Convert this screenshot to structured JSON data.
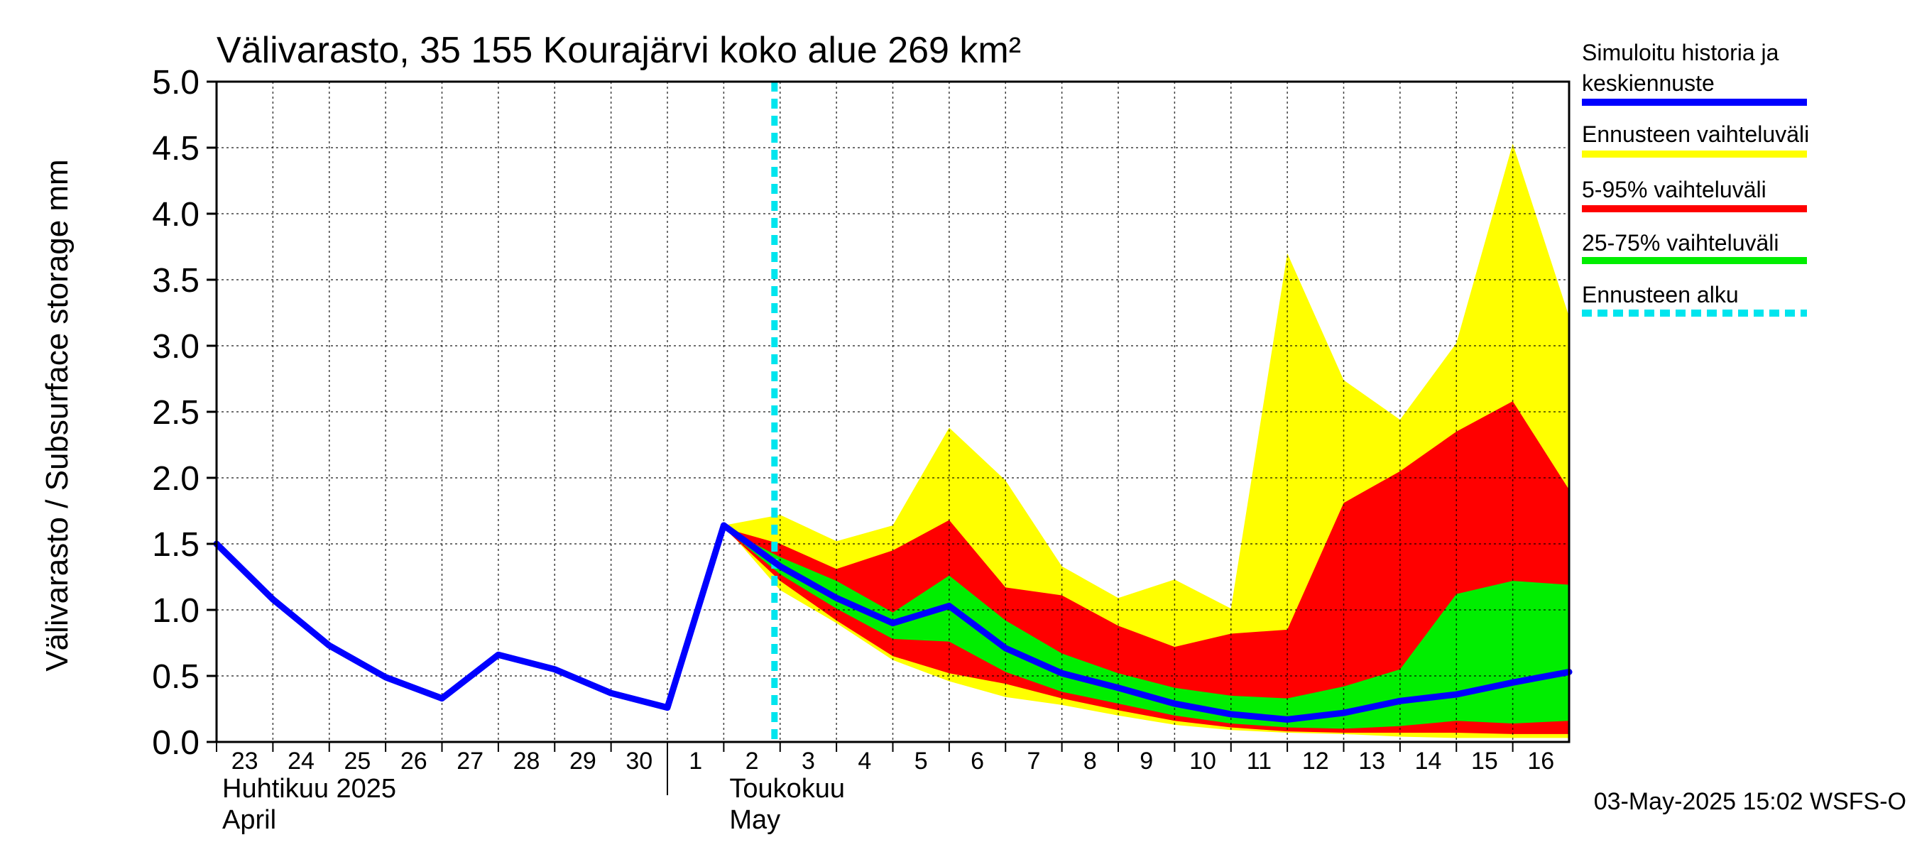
{
  "chart_data": {
    "type": "area",
    "title": "Välivarasto, 35 155 Kourajärvi koko alue 269 km²",
    "ylabel": "Välivarasto / Subsurface storage  mm",
    "ylim": [
      0,
      5.0
    ],
    "yticks": [
      "0.0",
      "0.5",
      "1.0",
      "1.5",
      "2.0",
      "2.5",
      "3.0",
      "3.5",
      "4.0",
      "4.5",
      "5.0"
    ],
    "x_days": [
      "23",
      "24",
      "25",
      "26",
      "27",
      "28",
      "29",
      "30",
      "1",
      "2",
      "3",
      "4",
      "5",
      "6",
      "7",
      "8",
      "9",
      "10",
      "11",
      "12",
      "13",
      "14",
      "15",
      "16"
    ],
    "month_labels": [
      {
        "fi": "Huhtikuu  2025",
        "en": "April"
      },
      {
        "fi": "Toukokuu",
        "en": "May"
      }
    ],
    "forecast_start_index": 9.9,
    "history": {
      "name": "Simuloitu historia ja keskiennuste",
      "color": "#0000ff",
      "x": [
        0,
        1,
        2,
        3,
        4,
        5,
        6,
        7,
        8,
        9,
        10,
        11,
        12,
        13,
        14,
        15,
        16,
        17,
        18,
        19,
        20,
        21,
        22,
        23,
        24
      ],
      "values": [
        1.5,
        1.08,
        0.73,
        0.49,
        0.33,
        0.66,
        0.55,
        0.37,
        0.26,
        1.64,
        1.33,
        1.09,
        0.9,
        1.03,
        0.71,
        0.52,
        0.41,
        0.29,
        0.21,
        0.17,
        0.22,
        0.31,
        0.36,
        0.45,
        0.53
      ]
    },
    "bands": [
      {
        "name": "Ennusteen vaihteluväli",
        "color": "#ffff00",
        "x": [
          9,
          10,
          11,
          12,
          13,
          14,
          15,
          16,
          17,
          18,
          19,
          20,
          21,
          22,
          23,
          24
        ],
        "upper": [
          1.64,
          1.72,
          1.52,
          1.64,
          2.38,
          1.98,
          1.33,
          1.09,
          1.23,
          1.01,
          3.7,
          2.74,
          2.44,
          3.02,
          4.53,
          3.22
        ],
        "lower": [
          1.64,
          1.15,
          0.9,
          0.62,
          0.46,
          0.34,
          0.28,
          0.2,
          0.13,
          0.09,
          0.07,
          0.06,
          0.04,
          0.03,
          0.03,
          0.03
        ]
      },
      {
        "name": "5-95% vaihteluväli",
        "color": "#ff0000",
        "x": [
          9,
          10,
          11,
          12,
          13,
          14,
          15,
          16,
          17,
          18,
          19,
          20,
          21,
          22,
          23,
          24
        ],
        "upper": [
          1.62,
          1.5,
          1.31,
          1.45,
          1.68,
          1.17,
          1.11,
          0.88,
          0.72,
          0.82,
          0.85,
          1.81,
          2.05,
          2.35,
          2.58,
          1.91
        ],
        "lower": [
          1.62,
          1.22,
          0.92,
          0.65,
          0.52,
          0.44,
          0.33,
          0.24,
          0.16,
          0.11,
          0.08,
          0.07,
          0.07,
          0.07,
          0.06,
          0.06
        ]
      },
      {
        "name": "25-75% vaihteluväli",
        "color": "#00ee00",
        "x": [
          9,
          10,
          11,
          12,
          13,
          14,
          15,
          16,
          17,
          18,
          19,
          20,
          21,
          22,
          23,
          24
        ],
        "upper": [
          1.62,
          1.4,
          1.22,
          0.98,
          1.26,
          0.92,
          0.67,
          0.52,
          0.41,
          0.35,
          0.33,
          0.42,
          0.55,
          1.12,
          1.22,
          1.19
        ],
        "lower": [
          1.62,
          1.27,
          1.01,
          0.78,
          0.76,
          0.53,
          0.38,
          0.29,
          0.2,
          0.14,
          0.11,
          0.1,
          0.12,
          0.16,
          0.14,
          0.16
        ]
      }
    ],
    "legend": [
      {
        "label_line1": "Simuloitu historia ja",
        "label_line2": "keskiennuste",
        "color": "#0000ff",
        "style": "solid"
      },
      {
        "label_line1": "Ennusteen vaihteluväli",
        "color": "#ffff00",
        "style": "solid"
      },
      {
        "label_line1": "5-95% vaihteluväli",
        "color": "#ff0000",
        "style": "solid"
      },
      {
        "label_line1": "25-75% vaihteluväli",
        "color": "#00ee00",
        "style": "solid"
      },
      {
        "label_line1": "Ennusteen alku",
        "color": "#00e5ee",
        "style": "dashed"
      }
    ],
    "legend_placement": "right",
    "grid": true,
    "footer": "03-May-2025 15:02 WSFS-O"
  }
}
